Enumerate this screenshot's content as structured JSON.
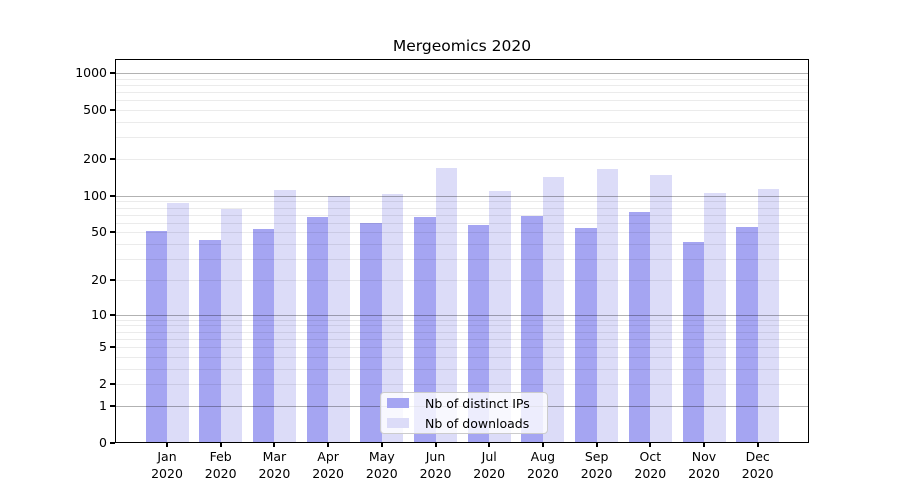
{
  "title": "Mergeomics 2020",
  "chart_data": {
    "type": "bar",
    "title": "Mergeomics 2020",
    "categories": [
      "Jan",
      "Feb",
      "Mar",
      "Apr",
      "May",
      "Jun",
      "Jul",
      "Aug",
      "Sep",
      "Oct",
      "Nov",
      "Dec"
    ],
    "category_year": "2020",
    "series": [
      {
        "name": "Nb of distinct IPs",
        "key": "distinct-ips",
        "color": "#a5a5f2",
        "values": [
          51,
          43,
          53,
          67,
          60,
          67,
          58,
          68,
          54,
          74,
          42,
          55
        ]
      },
      {
        "name": "Nb of downloads",
        "key": "downloads",
        "color": "#dcdcf8",
        "values": [
          88,
          78,
          112,
          100,
          103,
          168,
          110,
          144,
          165,
          149,
          106,
          113
        ]
      }
    ],
    "yscale": "log1p",
    "yticks": [
      0,
      1,
      2,
      5,
      10,
      20,
      50,
      100,
      200,
      500,
      1000
    ],
    "ylim": [
      0,
      1300
    ],
    "grid": "on",
    "legend_position": "lower-center"
  },
  "colors": {
    "spine": "#000000",
    "major_grid": "rgba(0,0,0,0.30)",
    "minor_grid": "rgba(0,0,0,0.08)",
    "legend_border": "#cccccc",
    "legend_background": "rgba(255,255,255,0.8)"
  }
}
